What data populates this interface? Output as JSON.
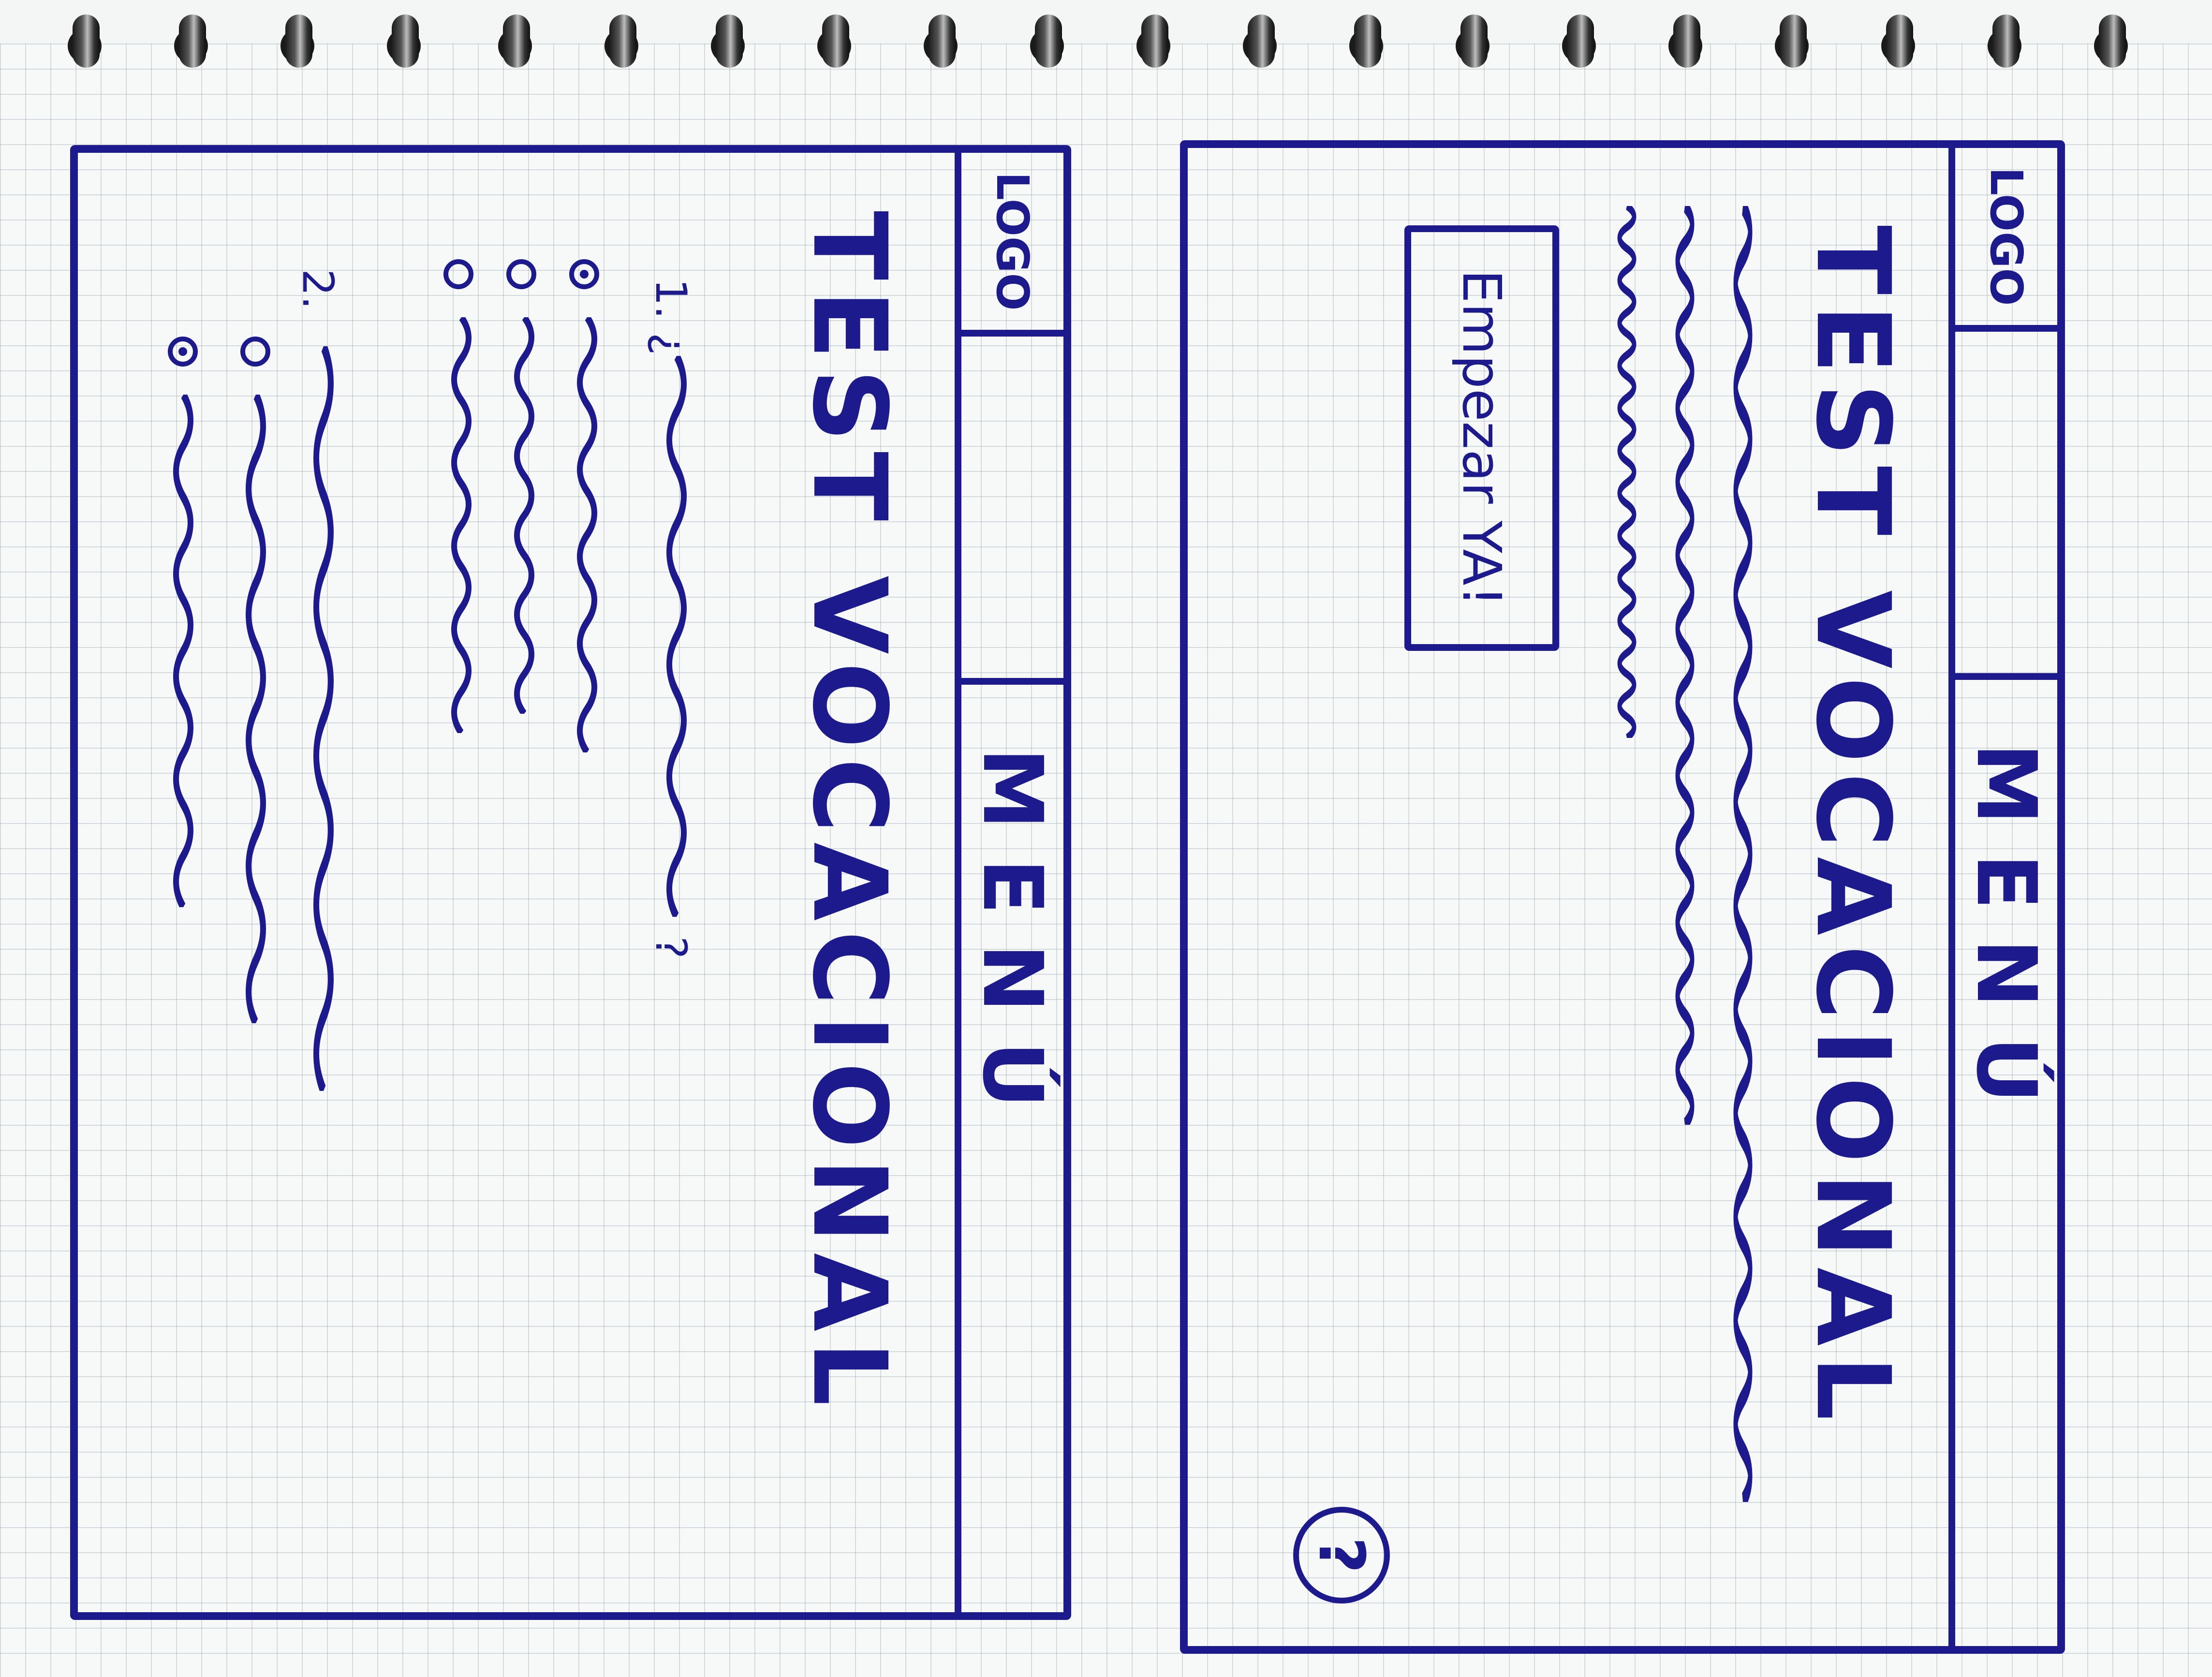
{
  "screen_start": {
    "logo": "LOGO",
    "menu": "MENÚ",
    "title": "TEST VOCACIONAL",
    "start_button": "Empezar YA!",
    "help_icon": "?"
  },
  "screen_test": {
    "logo": "LOGO",
    "menu": "MENÚ",
    "title": "TEST VOCACIONAL",
    "question_1": "1. ¿",
    "question_1_end": "?",
    "question_2": "2.",
    "question_1_selected_option": 1,
    "question_2_selected_option": 2
  },
  "colors": {
    "ink": "#1c1a8c",
    "grid": "#96a0aa"
  }
}
